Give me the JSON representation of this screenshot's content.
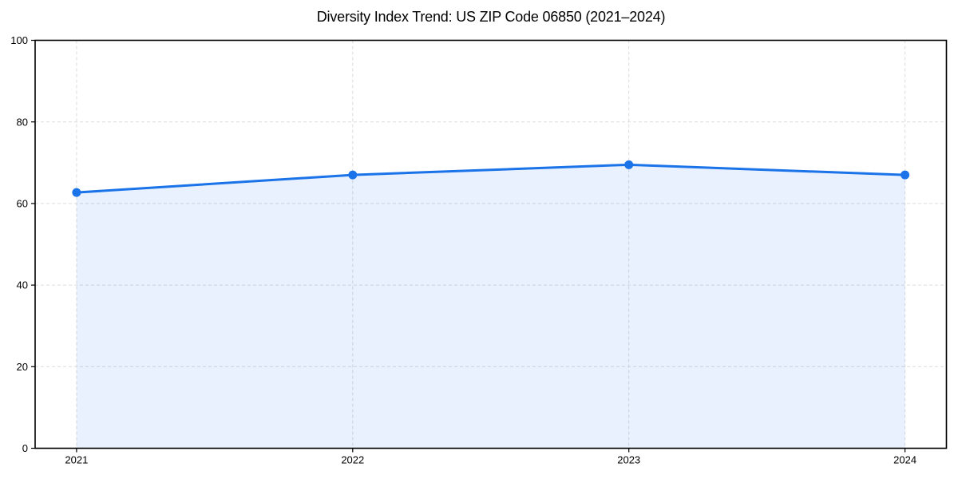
{
  "page": {
    "background": "#ffffff"
  },
  "chart_data": {
    "type": "area",
    "title": "Diversity Index Trend: US ZIP Code 06850 (2021–2024)",
    "series_name": "Diversity Index",
    "x": [
      2021,
      2022,
      2023,
      2024
    ],
    "x_tick_labels": [
      "2021",
      "2022",
      "2023",
      "2024"
    ],
    "values": [
      62.7,
      67.0,
      69.5,
      67.0
    ],
    "xlabel": "",
    "ylabel": "",
    "xlim": [
      2020.85,
      2024.15
    ],
    "ylim": [
      0,
      100
    ],
    "yticks": [
      0,
      20,
      40,
      60,
      80,
      100
    ],
    "grid": true,
    "grid_style": "dashed",
    "legend_position": "none",
    "marker": "circle",
    "colors": {
      "line": "#1a73e8",
      "marker": "#1a73e8",
      "fill": "#1a73e8",
      "fill_opacity": 0.1,
      "grid": "#dcdcdc",
      "axis": "#000000",
      "tick_label": "#000000",
      "title": "#000000",
      "background": "#ffffff"
    }
  }
}
